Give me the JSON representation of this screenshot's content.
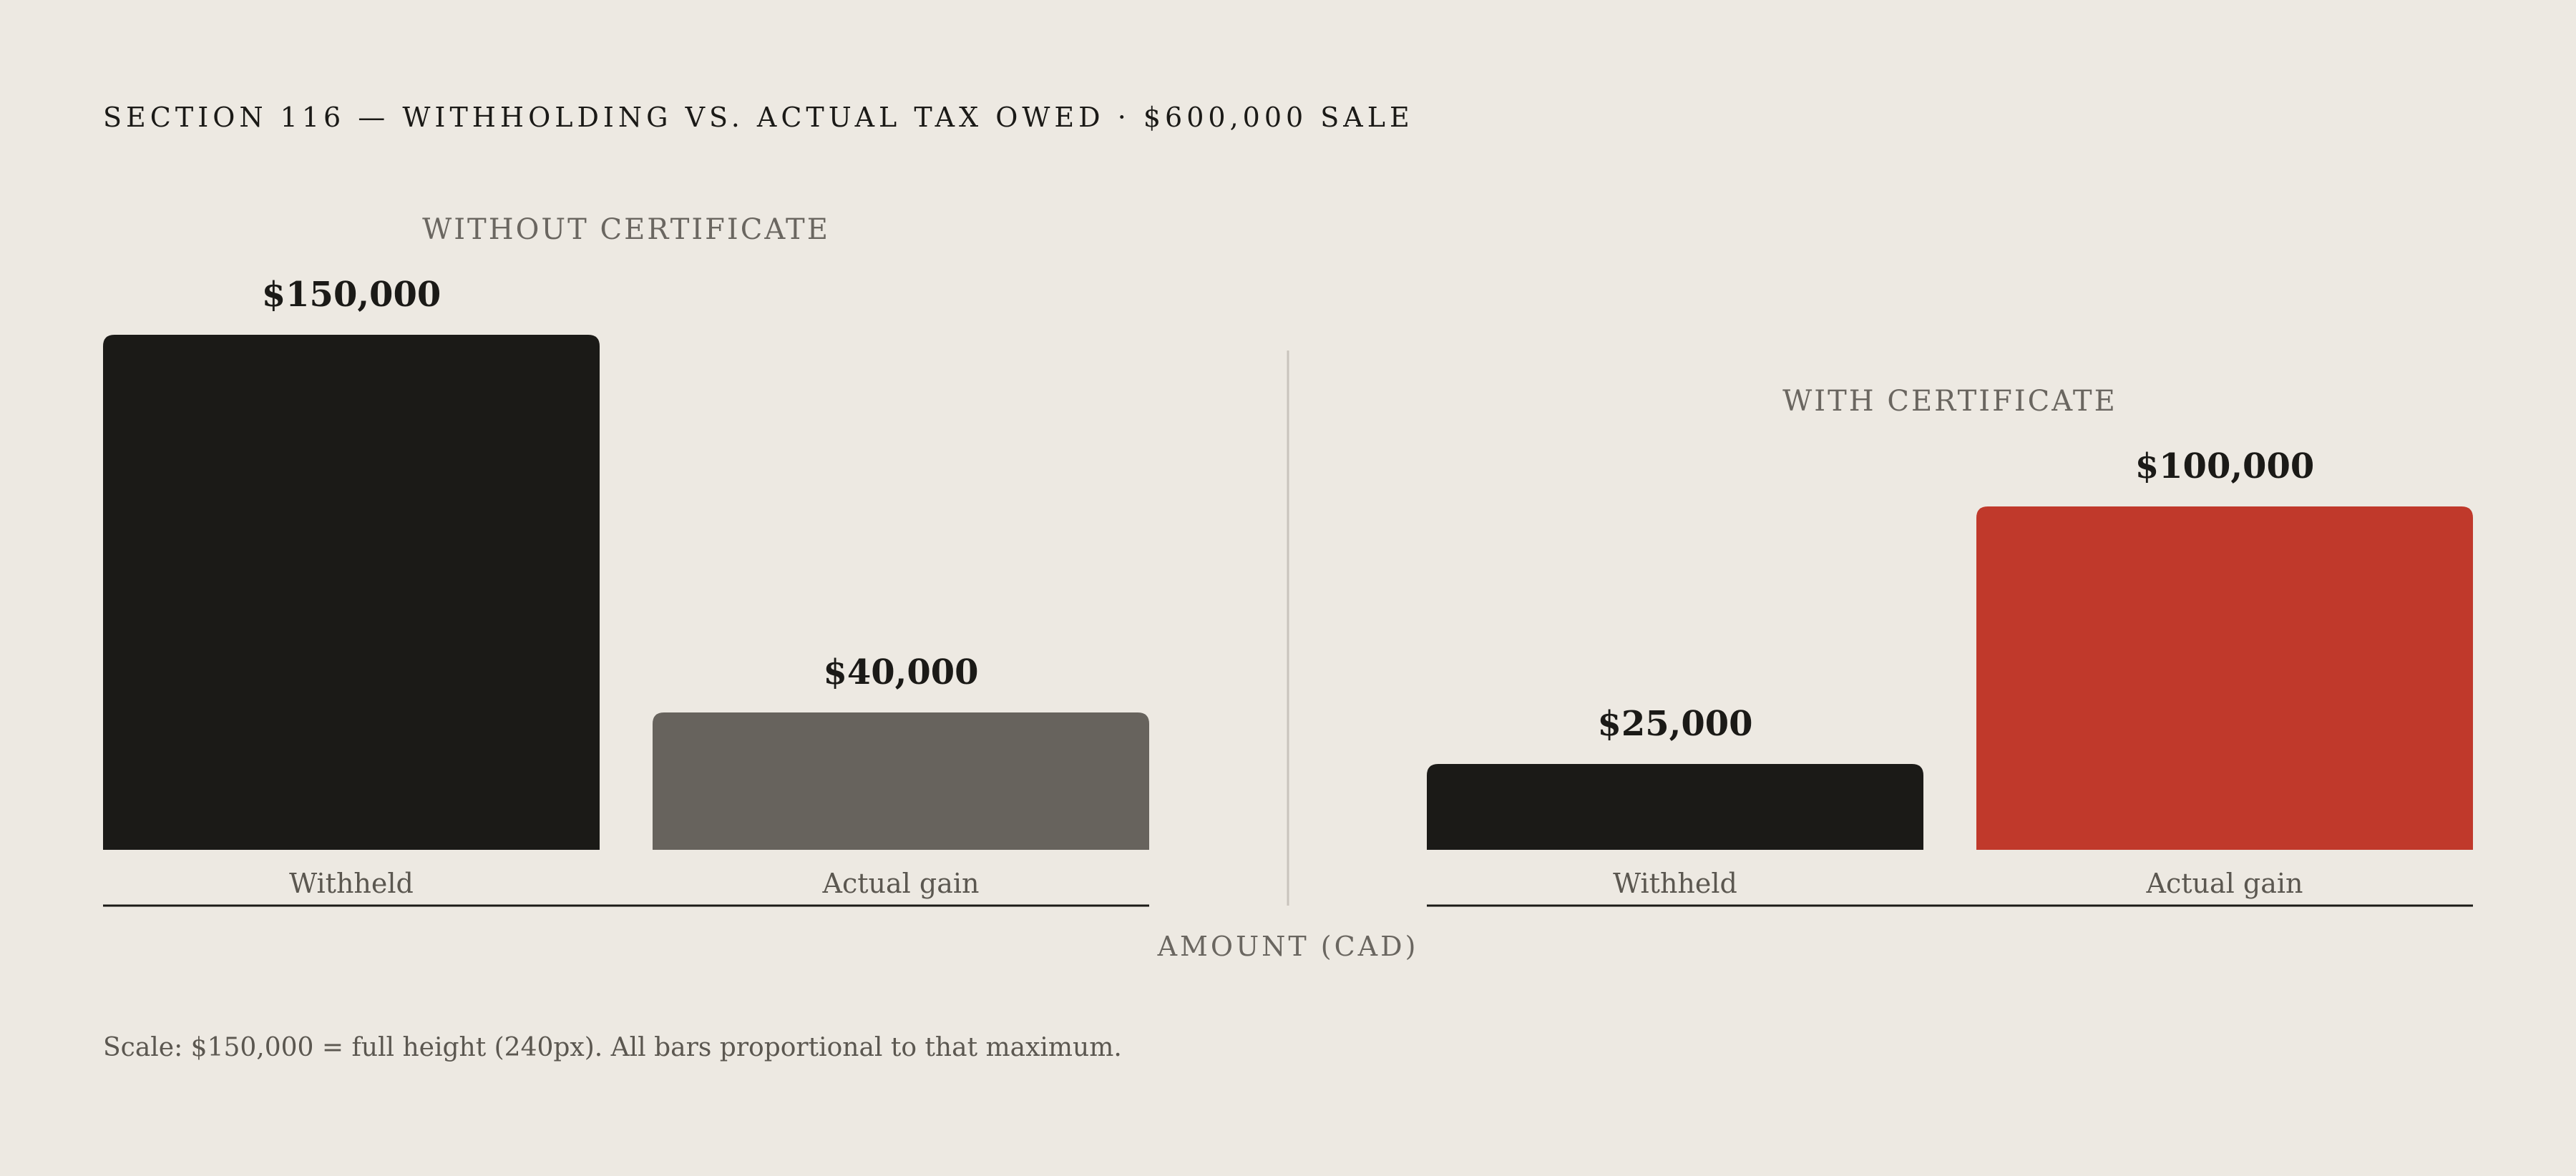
{
  "chart_title": "SECTION 116 — WITHHOLDING VS. ACTUAL TAX OWED · $600,000 SALE",
  "footnote": "Scale: $150,000 = full height (240px). All bars proportional to that maximum.",
  "chart_data": [
    {
      "type": "bar",
      "title": "WITHOUT CERTIFICATE",
      "categories": [
        "Withheld",
        "Actual gain"
      ],
      "values": [
        150000,
        40000
      ],
      "value_labels": [
        "$150,000",
        "$40,000"
      ],
      "colors": [
        "#1b1a17",
        "#67635d"
      ],
      "xlabel": "AMOUNT (CAD)",
      "ylim": [
        0,
        150000
      ],
      "grid": false
    },
    {
      "type": "bar",
      "title": "WITH CERTIFICATE",
      "categories": [
        "Withheld",
        "Actual gain"
      ],
      "values": [
        25000,
        100000
      ],
      "value_labels": [
        "$25,000",
        "$100,000"
      ],
      "colors": [
        "#1b1a17",
        "#c0392b"
      ],
      "xlabel": "AMOUNT (CAD)",
      "ylim": [
        0,
        150000
      ],
      "grid": false
    }
  ]
}
